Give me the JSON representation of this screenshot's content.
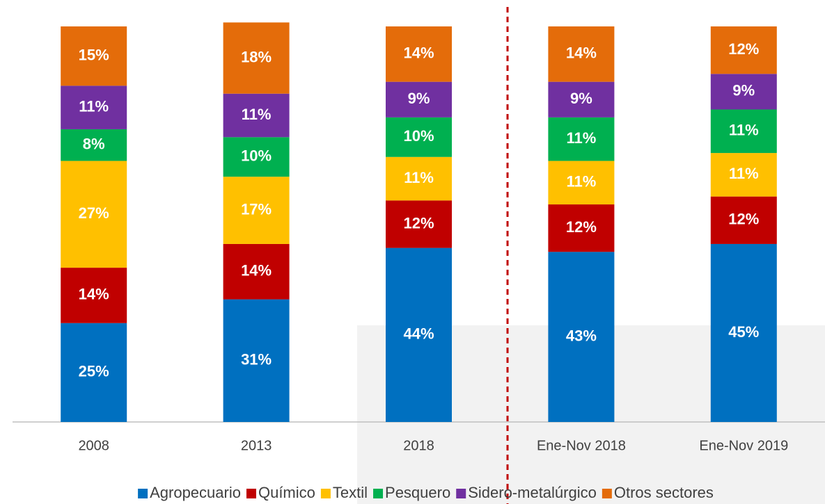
{
  "chart_data": {
    "type": "bar",
    "stacked": true,
    "categories": [
      "2008",
      "2013",
      "2018",
      "Ene-Nov 2018",
      "Ene-Nov 2019"
    ],
    "ylim": [
      0,
      100
    ],
    "series": [
      {
        "name": "Agropecuario",
        "color": "#0070c0",
        "values": [
          25,
          31,
          44,
          43,
          45
        ],
        "value_labels": [
          "25%",
          "31%",
          "44%",
          "43%",
          "45%"
        ]
      },
      {
        "name": "Químico",
        "color": "#c00000",
        "values": [
          14,
          14,
          12,
          12,
          12
        ],
        "value_labels": [
          "14%",
          "14%",
          "12%",
          "12%",
          "12%"
        ]
      },
      {
        "name": "Textil",
        "color": "#ffc000",
        "values": [
          27,
          17,
          11,
          11,
          11
        ],
        "value_labels": [
          "27%",
          "17%",
          "11%",
          "11%",
          "11%"
        ]
      },
      {
        "name": "Pesquero",
        "color": "#00b050",
        "values": [
          8,
          10,
          10,
          11,
          11
        ],
        "value_labels": [
          "8%",
          "10%",
          "10%",
          "11%",
          "11%"
        ]
      },
      {
        "name": "Sidero-metalúrgico",
        "color": "#7030a0",
        "values": [
          11,
          11,
          9,
          9,
          9
        ],
        "value_labels": [
          "11%",
          "11%",
          "9%",
          "9%",
          "9%"
        ]
      },
      {
        "name": "Otros sectores",
        "color": "#e46c0a",
        "values": [
          15,
          18,
          14,
          14,
          12
        ],
        "value_labels": [
          "15%",
          "18%",
          "14%",
          "14%",
          "12%"
        ]
      }
    ]
  }
}
